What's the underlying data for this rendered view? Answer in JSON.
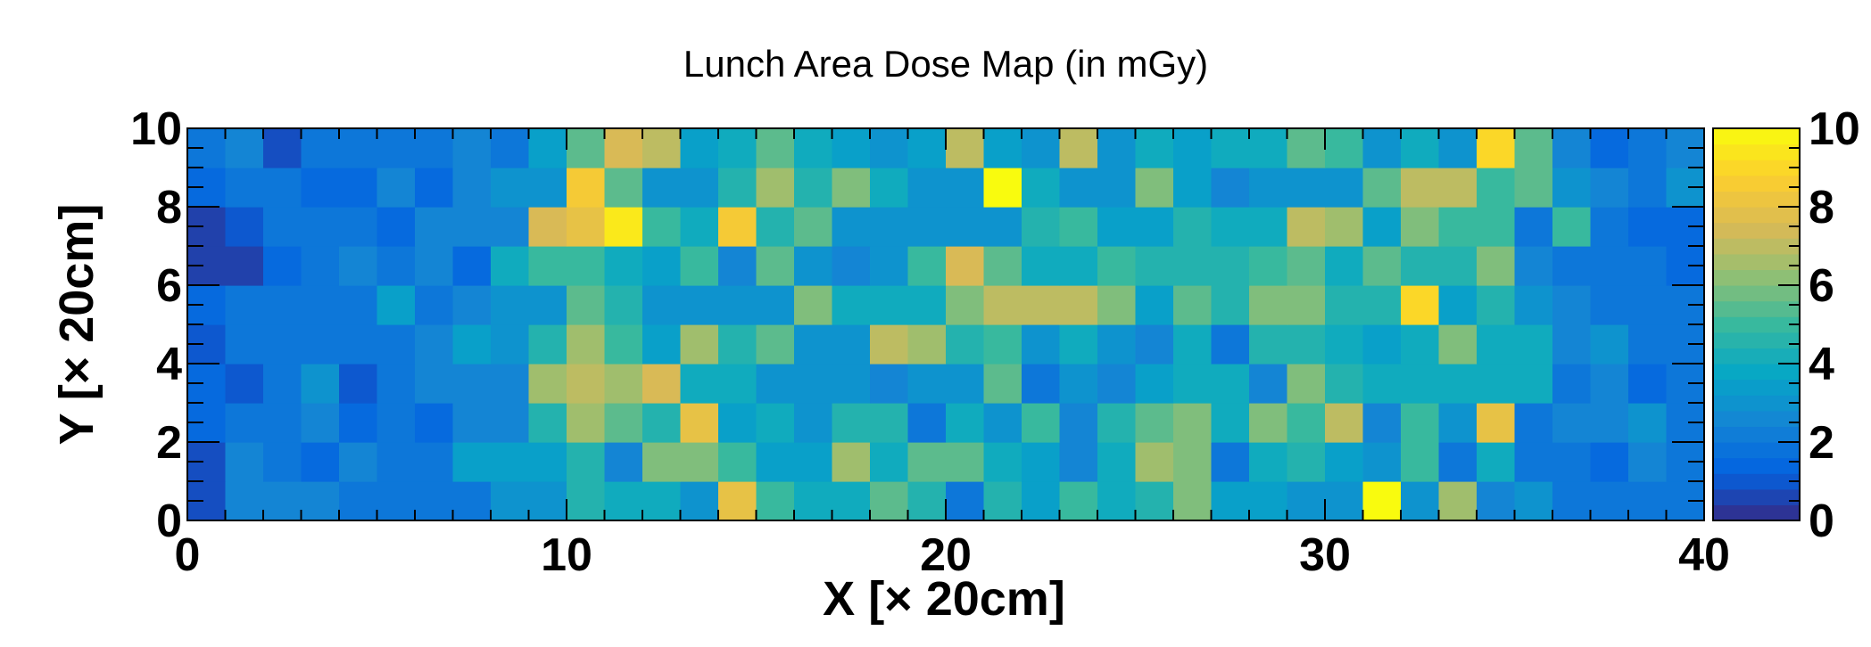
{
  "chart_data": {
    "type": "heatmap",
    "title": "Lunch Area Dose Map (in mGy)",
    "xlabel": "X [× 20cm]",
    "ylabel": "Y [× 20cm]",
    "xlim": [
      0,
      40
    ],
    "ylim": [
      0,
      10
    ],
    "zlim": [
      0,
      10
    ],
    "x_ticks": [
      "0",
      "10",
      "20",
      "30",
      "40"
    ],
    "y_ticks": [
      "0",
      "2",
      "4",
      "6",
      "8",
      "10"
    ],
    "z_ticks": [
      "0",
      "2",
      "4",
      "6",
      "8",
      "10"
    ],
    "bins_x": 40,
    "bins_y": 10,
    "palette_name": "parula",
    "palette": [
      "#352a87",
      "#0363e1",
      "#1485d4",
      "#06a7c6",
      "#38b99e",
      "#92bf73",
      "#d9ba56",
      "#fcce2e",
      "#f9fb0e"
    ],
    "grid": false,
    "z": [
      [
        0.8,
        2.5,
        2.5,
        2.5,
        2.0,
        2.0,
        2.0,
        2.0,
        3.0,
        3.0,
        4.5,
        4.0,
        4.0,
        3.0,
        8.0,
        5.0,
        4.0,
        4.0,
        5.5,
        4.5,
        2.0,
        4.5,
        3.5,
        5.0,
        4.0,
        4.5,
        6.0,
        3.5,
        3.5,
        3.0,
        3.0,
        10.0,
        3.0,
        6.5,
        2.5,
        3.0,
        2.0,
        2.0,
        2.0,
        2.0
      ],
      [
        0.8,
        2.5,
        2.0,
        1.5,
        2.5,
        2.0,
        2.0,
        3.5,
        3.5,
        3.5,
        4.5,
        2.5,
        6.0,
        6.0,
        5.0,
        3.5,
        3.5,
        6.5,
        4.0,
        5.5,
        5.5,
        4.0,
        3.5,
        2.5,
        4.0,
        6.5,
        6.0,
        2.0,
        4.0,
        4.5,
        3.5,
        3.0,
        5.0,
        2.0,
        4.0,
        2.0,
        2.0,
        1.5,
        2.5,
        2.0
      ],
      [
        1.5,
        2.0,
        2.0,
        2.5,
        1.5,
        2.0,
        1.5,
        2.5,
        2.5,
        4.5,
        6.5,
        5.5,
        4.5,
        8.0,
        3.5,
        4.0,
        3.0,
        4.5,
        4.5,
        2.0,
        4.0,
        3.0,
        5.0,
        2.5,
        4.5,
        5.5,
        6.0,
        4.0,
        6.0,
        5.0,
        7.0,
        2.5,
        5.0,
        3.0,
        8.0,
        2.0,
        2.5,
        2.5,
        3.0,
        2.0
      ],
      [
        1.5,
        1.0,
        2.0,
        3.0,
        1.0,
        2.0,
        2.5,
        2.5,
        2.5,
        6.5,
        7.0,
        6.5,
        7.5,
        4.0,
        4.0,
        3.0,
        3.0,
        3.0,
        2.5,
        3.0,
        3.0,
        5.5,
        2.0,
        3.0,
        2.5,
        3.5,
        4.0,
        4.0,
        2.5,
        6.0,
        4.5,
        4.0,
        4.0,
        4.0,
        4.0,
        4.0,
        2.0,
        2.5,
        1.5,
        2.0
      ],
      [
        1.0,
        2.0,
        2.0,
        2.0,
        2.0,
        2.0,
        2.5,
        3.5,
        3.0,
        4.5,
        6.5,
        5.0,
        3.5,
        6.5,
        4.5,
        5.5,
        3.0,
        3.0,
        7.0,
        6.5,
        4.5,
        5.0,
        3.0,
        4.0,
        3.0,
        2.5,
        4.0,
        2.0,
        4.5,
        4.5,
        4.0,
        3.5,
        4.0,
        6.0,
        4.0,
        4.0,
        2.5,
        3.0,
        2.0,
        2.0
      ],
      [
        1.5,
        2.0,
        2.0,
        2.0,
        2.0,
        3.5,
        2.0,
        2.5,
        3.0,
        3.0,
        5.5,
        4.5,
        3.0,
        3.0,
        3.0,
        3.0,
        6.0,
        4.0,
        4.0,
        4.0,
        6.0,
        7.0,
        7.0,
        7.0,
        6.0,
        3.5,
        5.5,
        4.5,
        6.0,
        6.0,
        4.5,
        4.5,
        9.0,
        3.5,
        4.5,
        3.0,
        2.5,
        2.0,
        2.0,
        2.0
      ],
      [
        0.5,
        0.5,
        1.5,
        2.0,
        2.5,
        2.0,
        2.5,
        1.5,
        4.0,
        5.0,
        5.0,
        4.0,
        3.5,
        5.0,
        2.5,
        5.5,
        3.0,
        2.5,
        3.0,
        5.0,
        7.5,
        5.5,
        4.0,
        4.0,
        5.0,
        4.5,
        4.5,
        4.5,
        5.0,
        5.5,
        4.0,
        5.5,
        4.5,
        4.5,
        6.0,
        2.5,
        2.0,
        2.0,
        2.0,
        1.5
      ],
      [
        0.5,
        1.0,
        2.0,
        2.0,
        2.0,
        1.5,
        2.5,
        2.5,
        2.5,
        7.5,
        8.0,
        9.5,
        5.0,
        4.0,
        8.5,
        4.5,
        5.5,
        3.0,
        3.0,
        3.0,
        3.0,
        3.0,
        4.5,
        5.0,
        3.5,
        3.5,
        4.5,
        4.0,
        4.0,
        7.0,
        6.5,
        3.5,
        6.0,
        5.0,
        5.0,
        2.0,
        5.0,
        2.0,
        1.5,
        1.5
      ],
      [
        1.5,
        2.0,
        2.0,
        1.5,
        1.5,
        2.5,
        1.5,
        2.5,
        3.0,
        3.0,
        8.5,
        5.5,
        3.0,
        3.0,
        4.5,
        6.5,
        4.5,
        6.0,
        4.0,
        3.0,
        3.0,
        10.0,
        4.0,
        3.0,
        3.0,
        6.0,
        3.5,
        2.5,
        3.0,
        3.0,
        3.0,
        5.5,
        7.0,
        7.0,
        5.0,
        5.5,
        3.0,
        2.5,
        2.0,
        3.0
      ],
      [
        2.0,
        2.5,
        0.8,
        2.0,
        2.0,
        2.0,
        2.0,
        2.5,
        2.0,
        3.5,
        5.5,
        7.5,
        7.0,
        3.5,
        4.0,
        5.5,
        4.0,
        3.5,
        3.0,
        3.5,
        7.0,
        3.5,
        3.0,
        7.0,
        3.0,
        4.0,
        3.5,
        4.0,
        4.0,
        5.5,
        5.0,
        3.0,
        4.0,
        3.0,
        9.0,
        5.5,
        2.5,
        1.5,
        2.0,
        2.5
      ]
    ]
  }
}
